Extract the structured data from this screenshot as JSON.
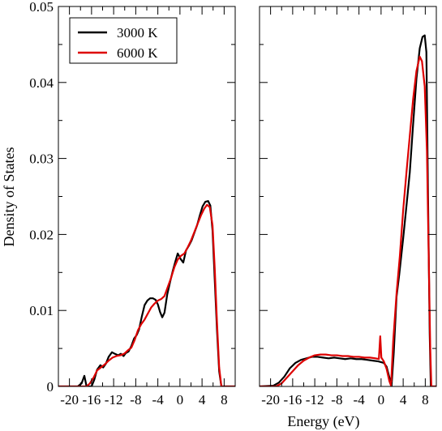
{
  "chart_data": {
    "type": "line",
    "xlabel": "Energy (eV)",
    "ylabel": "Density of States",
    "ylim": [
      0,
      0.05
    ],
    "yticks": [
      0,
      0.01,
      0.02,
      0.03,
      0.04,
      0.05
    ],
    "ytick_labels": [
      "0",
      "0.01",
      "0.02",
      "0.03",
      "0.04",
      "0.05"
    ],
    "xlim": [
      -22,
      10
    ],
    "xticks": [
      -20,
      -16,
      -12,
      -8,
      -4,
      0,
      4,
      8
    ],
    "xtick_labels": [
      "-20",
      "-16",
      "-12",
      "-8",
      "-4",
      "0",
      "4",
      "8"
    ],
    "grid": false,
    "legend": {
      "placement": "top-left",
      "entries": [
        {
          "label": "3000 K",
          "color": "#000000"
        },
        {
          "label": "6000 K",
          "color": "#dd0000"
        }
      ]
    },
    "panels": [
      {
        "name": "left",
        "series": [
          {
            "name": "3000 K",
            "color": "#000000",
            "points": [
              [
                -22,
                0
              ],
              [
                -18.5,
                0
              ],
              [
                -17.8,
                0.0004
              ],
              [
                -17.3,
                0.0014
              ],
              [
                -16.9,
                0
              ],
              [
                -16,
                0
              ],
              [
                -15.5,
                0.0009
              ],
              [
                -15,
                0.0022
              ],
              [
                -14.4,
                0.0028
              ],
              [
                -13.9,
                0.0025
              ],
              [
                -13.4,
                0.003
              ],
              [
                -12.9,
                0.0039
              ],
              [
                -12.3,
                0.0045
              ],
              [
                -11.8,
                0.0043
              ],
              [
                -11.2,
                0.0041
              ],
              [
                -10.7,
                0.0043
              ],
              [
                -10.2,
                0.004
              ],
              [
                -9.8,
                0.0044
              ],
              [
                -9.3,
                0.0046
              ],
              [
                -8.8,
                0.0053
              ],
              [
                -8.3,
                0.0063
              ],
              [
                -7.8,
                0.0068
              ],
              [
                -7.4,
                0.0075
              ],
              [
                -6.9,
                0.0092
              ],
              [
                -6.4,
                0.0107
              ],
              [
                -5.9,
                0.0113
              ],
              [
                -5.4,
                0.0116
              ],
              [
                -4.9,
                0.0116
              ],
              [
                -4.4,
                0.0114
              ],
              [
                -4,
                0.0108
              ],
              [
                -3.6,
                0.0098
              ],
              [
                -3.2,
                0.0091
              ],
              [
                -2.8,
                0.0097
              ],
              [
                -2.3,
                0.0121
              ],
              [
                -1.8,
                0.0137
              ],
              [
                -1.3,
                0.0152
              ],
              [
                -0.8,
                0.0165
              ],
              [
                -0.4,
                0.0175
              ],
              [
                0.1,
                0.0168
              ],
              [
                0.6,
                0.0163
              ],
              [
                1.1,
                0.0179
              ],
              [
                1.6,
                0.0185
              ],
              [
                2.1,
                0.0192
              ],
              [
                2.6,
                0.0202
              ],
              [
                3.1,
                0.0212
              ],
              [
                3.6,
                0.0225
              ],
              [
                4.1,
                0.0237
              ],
              [
                4.6,
                0.0243
              ],
              [
                5.1,
                0.0244
              ],
              [
                5.5,
                0.0238
              ],
              [
                5.9,
                0.0205
              ],
              [
                6.3,
                0.014
              ],
              [
                6.7,
                0.0075
              ],
              [
                7.1,
                0.002
              ],
              [
                7.5,
                0
              ],
              [
                10,
                0
              ]
            ]
          },
          {
            "name": "6000 K",
            "color": "#dd0000",
            "points": [
              [
                -22,
                0
              ],
              [
                -16.9,
                0
              ],
              [
                -16.3,
                0.0004
              ],
              [
                -15.6,
                0.0012
              ],
              [
                -15,
                0.0021
              ],
              [
                -14.3,
                0.0025
              ],
              [
                -13.6,
                0.0029
              ],
              [
                -12.9,
                0.0034
              ],
              [
                -12.2,
                0.0038
              ],
              [
                -11.5,
                0.004
              ],
              [
                -10.8,
                0.0041
              ],
              [
                -10.1,
                0.0043
              ],
              [
                -9.5,
                0.0047
              ],
              [
                -8.8,
                0.0051
              ],
              [
                -8.2,
                0.0061
              ],
              [
                -7.6,
                0.0074
              ],
              [
                -7,
                0.0082
              ],
              [
                -6.4,
                0.0088
              ],
              [
                -5.8,
                0.0096
              ],
              [
                -5.2,
                0.0104
              ],
              [
                -4.6,
                0.0109
              ],
              [
                -4,
                0.0113
              ],
              [
                -3.4,
                0.0115
              ],
              [
                -2.8,
                0.0119
              ],
              [
                -2.2,
                0.0131
              ],
              [
                -1.6,
                0.0143
              ],
              [
                -1,
                0.0157
              ],
              [
                -0.4,
                0.0167
              ],
              [
                0.2,
                0.0172
              ],
              [
                0.8,
                0.0175
              ],
              [
                1.4,
                0.0183
              ],
              [
                2,
                0.0192
              ],
              [
                2.6,
                0.0203
              ],
              [
                3.2,
                0.0214
              ],
              [
                3.8,
                0.0225
              ],
              [
                4.4,
                0.0234
              ],
              [
                4.9,
                0.0239
              ],
              [
                5.4,
                0.0236
              ],
              [
                5.9,
                0.0212
              ],
              [
                6.3,
                0.0155
              ],
              [
                6.7,
                0.0085
              ],
              [
                7.1,
                0.0025
              ],
              [
                7.5,
                0
              ],
              [
                10,
                0
              ]
            ]
          }
        ]
      },
      {
        "name": "right",
        "series": [
          {
            "name": "3000 K",
            "color": "#000000",
            "points": [
              [
                -22,
                0
              ],
              [
                -19.5,
                0.0001
              ],
              [
                -18.5,
                0.0005
              ],
              [
                -17.5,
                0.0013
              ],
              [
                -16.5,
                0.0024
              ],
              [
                -15.5,
                0.0031
              ],
              [
                -14.5,
                0.0035
              ],
              [
                -13.5,
                0.0037
              ],
              [
                -12.5,
                0.0039
              ],
              [
                -11.5,
                0.0039
              ],
              [
                -10.5,
                0.0038
              ],
              [
                -9.5,
                0.0037
              ],
              [
                -8.5,
                0.0038
              ],
              [
                -7.5,
                0.0037
              ],
              [
                -6.5,
                0.0036
              ],
              [
                -5.5,
                0.0037
              ],
              [
                -4.5,
                0.0036
              ],
              [
                -3.5,
                0.0036
              ],
              [
                -2.5,
                0.0035
              ],
              [
                -1.5,
                0.0034
              ],
              [
                -0.5,
                0.0033
              ],
              [
                0.5,
                0.0031
              ],
              [
                1,
                0.0026
              ],
              [
                1.5,
                0.0012
              ],
              [
                1.9,
                0.0001
              ],
              [
                2.3,
                0.0045
              ],
              [
                2.8,
                0.0118
              ],
              [
                3.3,
                0.0148
              ],
              [
                4,
                0.0195
              ],
              [
                4.6,
                0.0238
              ],
              [
                5.2,
                0.0282
              ],
              [
                5.8,
                0.0345
              ],
              [
                6.4,
                0.0405
              ],
              [
                7,
                0.0445
              ],
              [
                7.5,
                0.046
              ],
              [
                7.9,
                0.0462
              ],
              [
                8.2,
                0.044
              ],
              [
                8.5,
                0.025
              ],
              [
                8.8,
                0.007
              ],
              [
                9,
                0
              ],
              [
                10,
                0
              ]
            ]
          },
          {
            "name": "6000 K",
            "color": "#dd0000",
            "points": [
              [
                -22,
                0
              ],
              [
                -19,
                0
              ],
              [
                -18,
                0.0004
              ],
              [
                -17,
                0.0012
              ],
              [
                -16,
                0.002
              ],
              [
                -15,
                0.0028
              ],
              [
                -14,
                0.0034
              ],
              [
                -13,
                0.0038
              ],
              [
                -12,
                0.0041
              ],
              [
                -11,
                0.0042
              ],
              [
                -10,
                0.0042
              ],
              [
                -9,
                0.0041
              ],
              [
                -8,
                0.0041
              ],
              [
                -7,
                0.004
              ],
              [
                -6,
                0.004
              ],
              [
                -5,
                0.0039
              ],
              [
                -4,
                0.0039
              ],
              [
                -3,
                0.0038
              ],
              [
                -2,
                0.0038
              ],
              [
                -1,
                0.0037
              ],
              [
                -0.4,
                0.0036
              ],
              [
                -0.15,
                0.0066
              ],
              [
                0.05,
                0.0038
              ],
              [
                0.5,
                0.0033
              ],
              [
                1,
                0.0023
              ],
              [
                1.5,
                0.0007
              ],
              [
                1.8,
                0.0001
              ],
              [
                2.2,
                0.006
              ],
              [
                2.8,
                0.0122
              ],
              [
                3.4,
                0.0172
              ],
              [
                4,
                0.0232
              ],
              [
                4.6,
                0.0282
              ],
              [
                5.2,
                0.033
              ],
              [
                5.8,
                0.0378
              ],
              [
                6.4,
                0.0415
              ],
              [
                7,
                0.0434
              ],
              [
                7.4,
                0.0428
              ],
              [
                7.9,
                0.0395
              ],
              [
                8.3,
                0.031
              ],
              [
                8.6,
                0.018
              ],
              [
                8.9,
                0.005
              ],
              [
                9.1,
                0
              ],
              [
                10,
                0
              ]
            ]
          }
        ]
      }
    ]
  }
}
